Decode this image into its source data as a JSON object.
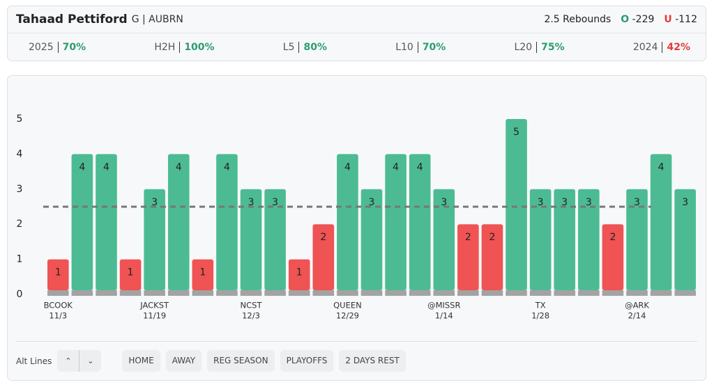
{
  "header": {
    "player": "Tahaad Pettiford",
    "team": "G | AUBRN",
    "prop": "2.5 Rebounds",
    "over_label": "O",
    "over_odds": "-229",
    "under_label": "U",
    "under_odds": "-112"
  },
  "stats": [
    {
      "label": "2025",
      "value": "70%",
      "good": true
    },
    {
      "label": "H2H",
      "value": "100%",
      "good": true
    },
    {
      "label": "L5",
      "value": "80%",
      "good": true
    },
    {
      "label": "L10",
      "value": "70%",
      "good": true
    },
    {
      "label": "L20",
      "value": "75%",
      "good": true
    },
    {
      "label": "2024",
      "value": "42%",
      "good": false
    }
  ],
  "chart_data": {
    "type": "bar",
    "categories": [
      "BCOOK",
      null,
      null,
      null,
      "JACKST",
      null,
      null,
      null,
      "NCST",
      null,
      null,
      null,
      "QUEEN",
      null,
      null,
      null,
      "@MISSR",
      null,
      null,
      null,
      "TX",
      null,
      null,
      null,
      "@ARK",
      null,
      null
    ],
    "dates": [
      "11/3",
      null,
      null,
      null,
      "11/19",
      null,
      null,
      null,
      "12/3",
      null,
      null,
      null,
      "12/29",
      null,
      null,
      null,
      "1/14",
      null,
      null,
      null,
      "1/28",
      null,
      null,
      null,
      "2/14",
      null,
      null
    ],
    "values": [
      1,
      4,
      4,
      1,
      3,
      4,
      1,
      4,
      3,
      3,
      1,
      2,
      4,
      3,
      4,
      4,
      3,
      2,
      2,
      5,
      3,
      3,
      3,
      2,
      3,
      4,
      3
    ],
    "line": 2.5,
    "over_color": "#4cbb94",
    "under_color": "#ef5353",
    "ylim": [
      0,
      5
    ],
    "yticks": [
      0,
      1,
      2,
      3,
      4,
      5
    ]
  },
  "controls": {
    "alt_lines": "Alt Lines",
    "filters": [
      "HOME",
      "AWAY",
      "REG SEASON",
      "PLAYOFFS",
      "2 DAYS REST"
    ]
  }
}
